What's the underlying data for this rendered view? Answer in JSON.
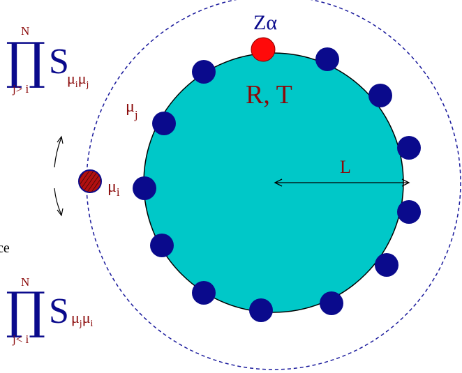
{
  "colors": {
    "disk_fill": "#00c8c8",
    "particle": "#0a0a8c",
    "impurity": "#ff0a0a",
    "wall": "#1a1a9c",
    "label_red": "#8b0a0a",
    "label_blue": "#0a0a8c"
  },
  "labels": {
    "impurity": "Zα",
    "center": "R, T",
    "radius": "L",
    "mu_j": "μj",
    "mu_i": "μi",
    "cut_text": "ce"
  },
  "product_top": {
    "symbol": "∏",
    "upper": "N",
    "lower": "j> i",
    "operator": "S",
    "sub": "μiμj"
  },
  "product_bottom": {
    "symbol": "∏",
    "upper": "N",
    "lower": "j< i",
    "operator": "S",
    "sub": "μjμi"
  }
}
